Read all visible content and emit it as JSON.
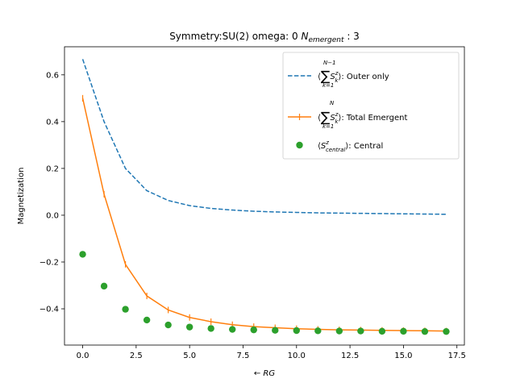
{
  "chart_data": {
    "type": "line",
    "title": "Symmetry:SU(2)  omega: 0   N_emergent : 3",
    "xlabel": "← RG",
    "ylabel": "Magnetization",
    "xlim": [
      -0.85,
      17.85
    ],
    "ylim": [
      -0.555,
      0.72
    ],
    "xticks": [
      0.0,
      2.5,
      5.0,
      7.5,
      10.0,
      12.5,
      15.0,
      17.5
    ],
    "xtick_labels": [
      "0.0",
      "2.5",
      "5.0",
      "7.5",
      "10.0",
      "12.5",
      "15.0",
      "17.5"
    ],
    "yticks": [
      -0.4,
      -0.2,
      0.0,
      0.2,
      0.4,
      0.6
    ],
    "ytick_labels": [
      "−0.4",
      "−0.2",
      "0.0",
      "0.2",
      "0.4",
      "0.6"
    ],
    "legend_position": "top-right",
    "x": [
      0,
      1,
      2,
      3,
      4,
      5,
      6,
      7,
      8,
      9,
      10,
      11,
      12,
      13,
      14,
      15,
      16,
      17
    ],
    "series": [
      {
        "name": "⟨Σ_{k=1}^{N-1} S_k^z⟩: Outer only",
        "style": "dashed",
        "color": "#1f77b4",
        "values": [
          0.667,
          0.4,
          0.2,
          0.105,
          0.063,
          0.041,
          0.029,
          0.022,
          0.017,
          0.014,
          0.012,
          0.01,
          0.009,
          0.008,
          0.007,
          0.006,
          0.005,
          0.004
        ]
      },
      {
        "name": "⟨Σ_{k=1}^{N} S_k^z⟩: Total Emergent",
        "style": "solid-plus",
        "color": "#ff7f0e",
        "values": [
          0.5,
          0.09,
          -0.21,
          -0.345,
          -0.405,
          -0.437,
          -0.455,
          -0.468,
          -0.476,
          -0.481,
          -0.485,
          -0.488,
          -0.49,
          -0.491,
          -0.492,
          -0.493,
          -0.494,
          -0.495
        ]
      },
      {
        "name": "⟨S_central^z⟩: Central",
        "style": "markers",
        "color": "#2ca02c",
        "values": [
          -0.167,
          -0.303,
          -0.402,
          -0.448,
          -0.469,
          -0.478,
          -0.484,
          -0.488,
          -0.49,
          -0.492,
          -0.493,
          -0.494,
          -0.495,
          -0.495,
          -0.496,
          -0.496,
          -0.497,
          -0.497
        ]
      }
    ]
  }
}
